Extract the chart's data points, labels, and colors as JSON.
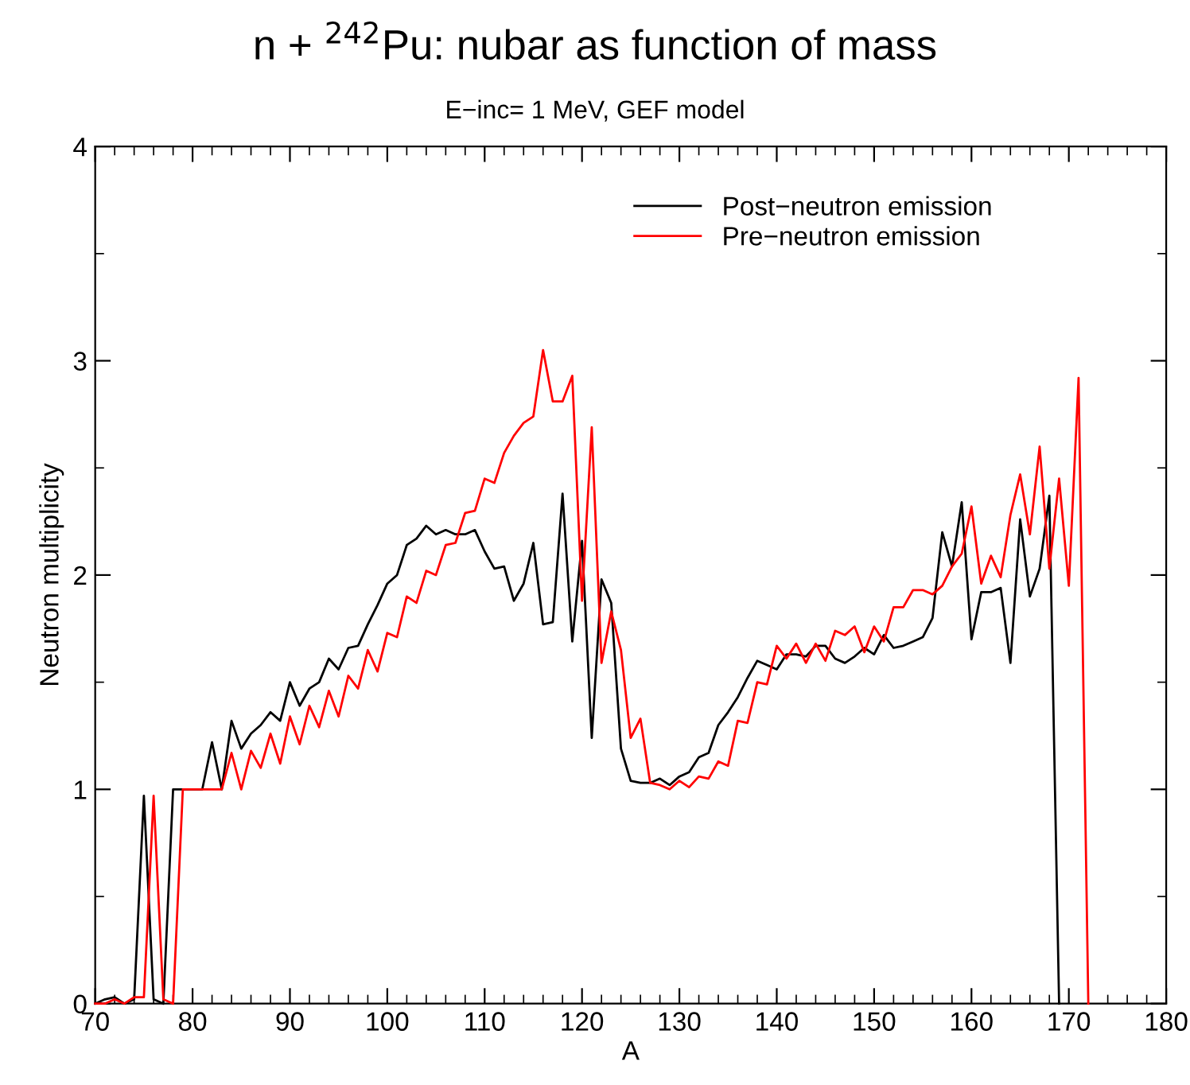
{
  "chart_data": {
    "type": "line",
    "title": "n + $^{242}$Pu: nubar as function of mass",
    "subtitle": "E−inc= 1 MeV, GEF model",
    "xlabel": "A",
    "ylabel": "Neutron multiplicity",
    "xlim": [
      70,
      180
    ],
    "xticks": [
      70,
      {
        "value": 72,
        "label": null
      },
      {
        "value": 74,
        "label": null
      },
      {
        "value": 76,
        "label": null
      },
      {
        "value": 78,
        "label": null
      },
      80,
      {
        "value": 82,
        "label": null
      },
      {
        "value": 84,
        "label": null
      },
      {
        "value": 86,
        "label": null
      },
      {
        "value": 88,
        "label": null
      },
      90,
      {
        "value": 92,
        "label": null
      },
      {
        "value": 94,
        "label": null
      },
      {
        "value": 96,
        "label": null
      },
      {
        "value": 98,
        "label": null
      },
      100,
      {
        "value": 102,
        "label": null
      },
      {
        "value": 104,
        "label": null
      },
      {
        "value": 106,
        "label": null
      },
      {
        "value": 108,
        "label": null
      },
      110,
      {
        "value": 112,
        "label": null
      },
      {
        "value": 114,
        "label": null
      },
      {
        "value": 116,
        "label": null
      },
      {
        "value": 118,
        "label": null
      },
      120,
      {
        "value": 122,
        "label": null
      },
      {
        "value": 124,
        "label": null
      },
      {
        "value": 126,
        "label": null
      },
      {
        "value": 128,
        "label": null
      },
      130,
      {
        "value": 132,
        "label": null
      },
      {
        "value": 134,
        "label": null
      },
      {
        "value": 136,
        "label": null
      },
      {
        "value": 138,
        "label": null
      },
      140,
      {
        "value": 142,
        "label": null
      },
      {
        "value": 144,
        "label": null
      },
      {
        "value": 146,
        "label": null
      },
      {
        "value": 148,
        "label": null
      },
      150,
      {
        "value": 152,
        "label": null
      },
      {
        "value": 154,
        "label": null
      },
      {
        "value": 156,
        "label": null
      },
      {
        "value": 158,
        "label": null
      },
      160,
      {
        "value": 162,
        "label": null
      },
      {
        "value": 164,
        "label": null
      },
      {
        "value": 166,
        "label": null
      },
      {
        "value": 168,
        "label": null
      },
      170,
      {
        "value": 172,
        "label": null
      },
      {
        "value": 174,
        "label": null
      },
      {
        "value": 176,
        "label": null
      },
      {
        "value": 178,
        "label": null
      },
      180
    ],
    "ylim": [
      0,
      4
    ],
    "yticks": [
      0,
      {
        "value": 0.5,
        "label": null
      },
      1,
      {
        "value": 1.5,
        "label": null
      },
      2,
      {
        "value": 2.5,
        "label": null
      },
      3,
      {
        "value": 3.5,
        "label": null
      },
      4
    ],
    "grid": false,
    "legend": "top right",
    "marker": "none",
    "line_style": "solid",
    "series": [
      {
        "name": "Post−neutron emission",
        "color": "#000000",
        "x": [
          70,
          71,
          72,
          73,
          74,
          75,
          76,
          77,
          78,
          79,
          80,
          81,
          82,
          83,
          84,
          85,
          86,
          87,
          88,
          89,
          90,
          91,
          92,
          93,
          94,
          95,
          96,
          97,
          98,
          99,
          100,
          101,
          102,
          103,
          104,
          105,
          106,
          107,
          108,
          109,
          110,
          111,
          112,
          113,
          114,
          115,
          116,
          117,
          118,
          119,
          120,
          121,
          122,
          123,
          124,
          125,
          126,
          127,
          128,
          129,
          130,
          131,
          132,
          133,
          134,
          135,
          136,
          137,
          138,
          139,
          140,
          141,
          142,
          143,
          144,
          145,
          146,
          147,
          148,
          149,
          150,
          151,
          152,
          153,
          154,
          155,
          156,
          157,
          158,
          159,
          160,
          161,
          162,
          163,
          164,
          165,
          166,
          167,
          168,
          169
        ],
        "values": [
          0,
          0.02,
          0.03,
          0,
          0.02,
          0.97,
          0.02,
          0,
          1.0,
          1.0,
          1.0,
          1.0,
          1.22,
          1.0,
          1.32,
          1.19,
          1.26,
          1.3,
          1.36,
          1.32,
          1.5,
          1.39,
          1.47,
          1.5,
          1.61,
          1.56,
          1.66,
          1.67,
          1.77,
          1.86,
          1.96,
          2.0,
          2.14,
          2.17,
          2.23,
          2.19,
          2.21,
          2.19,
          2.19,
          2.21,
          2.11,
          2.03,
          2.04,
          1.88,
          1.96,
          2.15,
          1.77,
          1.78,
          2.38,
          1.69,
          2.16,
          1.24,
          1.98,
          1.87,
          1.19,
          1.04,
          1.03,
          1.03,
          1.05,
          1.02,
          1.06,
          1.08,
          1.15,
          1.17,
          1.3,
          1.36,
          1.43,
          1.52,
          1.6,
          1.58,
          1.56,
          1.63,
          1.63,
          1.62,
          1.67,
          1.67,
          1.61,
          1.59,
          1.62,
          1.66,
          1.63,
          1.72,
          1.66,
          1.67,
          1.69,
          1.71,
          1.8,
          2.2,
          2.04,
          2.34,
          1.7,
          1.92,
          1.92,
          1.94,
          1.59,
          2.26,
          1.9,
          2.03,
          2.37,
          0
        ]
      },
      {
        "name": "Pre−neutron emission",
        "color": "#ff0000",
        "x": [
          70,
          71,
          72,
          73,
          74,
          75,
          76,
          77,
          78,
          79,
          80,
          81,
          82,
          83,
          84,
          85,
          86,
          87,
          88,
          89,
          90,
          91,
          92,
          93,
          94,
          95,
          96,
          97,
          98,
          99,
          100,
          101,
          102,
          103,
          104,
          105,
          106,
          107,
          108,
          109,
          110,
          111,
          112,
          113,
          114,
          115,
          116,
          117,
          118,
          119,
          120,
          121,
          122,
          123,
          124,
          125,
          126,
          127,
          128,
          129,
          130,
          131,
          132,
          133,
          134,
          135,
          136,
          137,
          138,
          139,
          140,
          141,
          142,
          143,
          144,
          145,
          146,
          147,
          148,
          149,
          150,
          151,
          152,
          153,
          154,
          155,
          156,
          157,
          158,
          159,
          160,
          161,
          162,
          163,
          164,
          165,
          166,
          167,
          168,
          169,
          170,
          171,
          172
        ],
        "values": [
          0,
          0,
          0.02,
          0,
          0.03,
          0.03,
          0.97,
          0.02,
          0,
          1.0,
          1.0,
          1.0,
          1.0,
          1.0,
          1.17,
          1.0,
          1.18,
          1.1,
          1.26,
          1.12,
          1.34,
          1.21,
          1.39,
          1.29,
          1.46,
          1.34,
          1.53,
          1.47,
          1.65,
          1.55,
          1.73,
          1.71,
          1.9,
          1.87,
          2.02,
          2.0,
          2.14,
          2.15,
          2.29,
          2.3,
          2.45,
          2.43,
          2.57,
          2.65,
          2.71,
          2.74,
          3.05,
          2.81,
          2.81,
          2.93,
          1.88,
          2.69,
          1.59,
          1.83,
          1.65,
          1.24,
          1.33,
          1.03,
          1.02,
          1.0,
          1.04,
          1.01,
          1.06,
          1.05,
          1.13,
          1.11,
          1.32,
          1.31,
          1.5,
          1.49,
          1.67,
          1.61,
          1.68,
          1.59,
          1.68,
          1.6,
          1.74,
          1.72,
          1.76,
          1.64,
          1.76,
          1.69,
          1.85,
          1.85,
          1.93,
          1.93,
          1.91,
          1.95,
          2.04,
          2.1,
          2.32,
          1.96,
          2.09,
          1.99,
          2.28,
          2.47,
          2.19,
          2.6,
          2.03,
          2.45,
          1.95,
          2.92,
          0
        ]
      }
    ]
  }
}
